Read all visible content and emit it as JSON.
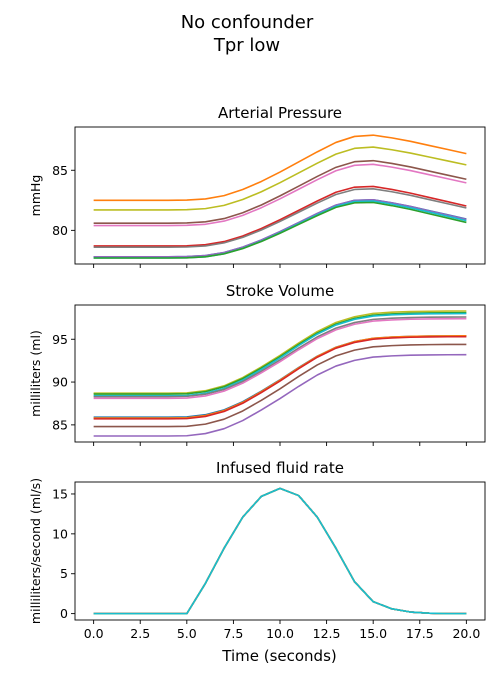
{
  "figure": {
    "title_line1": "No confounder",
    "title_line2": "Tpr low",
    "xlabel": "Time (seconds)"
  },
  "chart_data": [
    {
      "type": "line",
      "title": "Arterial Pressure",
      "ylabel": "mmHg",
      "xlim": [
        -1,
        21
      ],
      "ylim": [
        77.2,
        88.6
      ],
      "yticks": [
        80,
        85
      ],
      "xticks": [
        0,
        2.5,
        5,
        7.5,
        10,
        12.5,
        15,
        17.5,
        20
      ],
      "x": [
        0,
        1,
        2,
        3,
        4,
        5,
        6,
        7,
        8,
        9,
        10,
        11,
        12,
        13,
        14,
        15,
        16,
        17,
        18,
        19,
        20
      ],
      "shape": [
        0,
        0,
        0,
        0,
        0,
        0.003,
        0.02,
        0.07,
        0.16,
        0.28,
        0.42,
        0.57,
        0.72,
        0.86,
        0.95,
        0.97,
        0.93,
        0.88,
        0.82,
        0.76,
        0.7
      ],
      "series": [
        {
          "base": 82.5,
          "amp": 5.6,
          "decay": 1.1,
          "color": "#ff7f0e"
        },
        {
          "base": 81.7,
          "amp": 5.4,
          "decay": 1.1,
          "color": "#bcbd22"
        },
        {
          "base": 80.6,
          "amp": 5.4,
          "decay": 1.4,
          "color": "#8c564b"
        },
        {
          "base": 80.4,
          "amp": 5.3,
          "decay": 1.5,
          "color": "#e377c2"
        },
        {
          "base": 78.7,
          "amp": 5.2,
          "decay": 2.0,
          "color": "#d62728"
        },
        {
          "base": 78.6,
          "amp": 5.1,
          "decay": 2.0,
          "color": "#7f7f7f"
        },
        {
          "base": 77.8,
          "amp": 5.0,
          "decay": 2.2,
          "color": "#1f77b4"
        },
        {
          "base": 77.8,
          "amp": 5.0,
          "decay": 2.3,
          "color": "#9467bd"
        },
        {
          "base": 77.7,
          "amp": 5.0,
          "decay": 2.3,
          "color": "#17becf"
        },
        {
          "base": 77.7,
          "amp": 4.9,
          "decay": 2.6,
          "color": "#2ca02c"
        }
      ]
    },
    {
      "type": "line",
      "title": "Stroke Volume",
      "ylabel": "milliliters (ml)",
      "xlim": [
        -1,
        21
      ],
      "ylim": [
        83.0,
        99.0
      ],
      "yticks": [
        85,
        90,
        95
      ],
      "xticks": [
        0,
        2.5,
        5,
        7.5,
        10,
        12.5,
        15,
        17.5,
        20
      ],
      "x": [
        0,
        1,
        2,
        3,
        4,
        5,
        6,
        7,
        8,
        9,
        10,
        11,
        12,
        13,
        14,
        15,
        16,
        17,
        18,
        19,
        20
      ],
      "shape": [
        0,
        0,
        0,
        0,
        0,
        0.003,
        0.03,
        0.09,
        0.19,
        0.32,
        0.46,
        0.61,
        0.75,
        0.86,
        0.93,
        0.97,
        0.985,
        0.993,
        0.997,
        0.999,
        1.0
      ],
      "series": [
        {
          "base": 88.7,
          "amp": 9.6,
          "color": "#bcbd22"
        },
        {
          "base": 88.6,
          "amp": 9.5,
          "color": "#2ca02c"
        },
        {
          "base": 88.4,
          "amp": 9.6,
          "color": "#17becf"
        },
        {
          "base": 88.3,
          "amp": 9.3,
          "color": "#7f7f7f"
        },
        {
          "base": 88.1,
          "amp": 9.3,
          "color": "#e377c2"
        },
        {
          "base": 85.9,
          "amp": 9.5,
          "color": "#1f77b4"
        },
        {
          "base": 85.8,
          "amp": 9.6,
          "color": "#ff7f0e"
        },
        {
          "base": 85.7,
          "amp": 9.6,
          "color": "#d62728"
        },
        {
          "base": 84.8,
          "amp": 9.6,
          "color": "#8c564b"
        },
        {
          "base": 83.7,
          "amp": 9.5,
          "color": "#9467bd"
        }
      ]
    },
    {
      "type": "line",
      "title": "Infused fluid rate",
      "ylabel": "milliliters/second (ml/s)",
      "xlim": [
        -1,
        21
      ],
      "ylim": [
        -0.8,
        16.5
      ],
      "yticks": [
        0,
        5,
        10,
        15
      ],
      "xticks": [
        0,
        2.5,
        5,
        7.5,
        10,
        12.5,
        15,
        17.5,
        20
      ],
      "xticklabels": [
        "0.0",
        "2.5",
        "5.0",
        "7.5",
        "10.0",
        "12.5",
        "15.0",
        "17.5",
        "20.0"
      ],
      "x": [
        0,
        1,
        2,
        3,
        4,
        5,
        6,
        7,
        8,
        9,
        10,
        11,
        12,
        13,
        14,
        15,
        16,
        17,
        18,
        19,
        20
      ],
      "values": [
        0,
        0,
        0,
        0,
        0,
        0,
        3.8,
        8.2,
        12.1,
        14.7,
        15.7,
        14.8,
        12.1,
        8.2,
        4.0,
        1.5,
        0.6,
        0.2,
        0.05,
        0,
        0
      ],
      "colors": [
        "#1f77b4",
        "#ff7f0e",
        "#2ca02c",
        "#d62728",
        "#9467bd",
        "#8c564b",
        "#e377c2",
        "#7f7f7f",
        "#bcbd22",
        "#17becf"
      ]
    }
  ]
}
